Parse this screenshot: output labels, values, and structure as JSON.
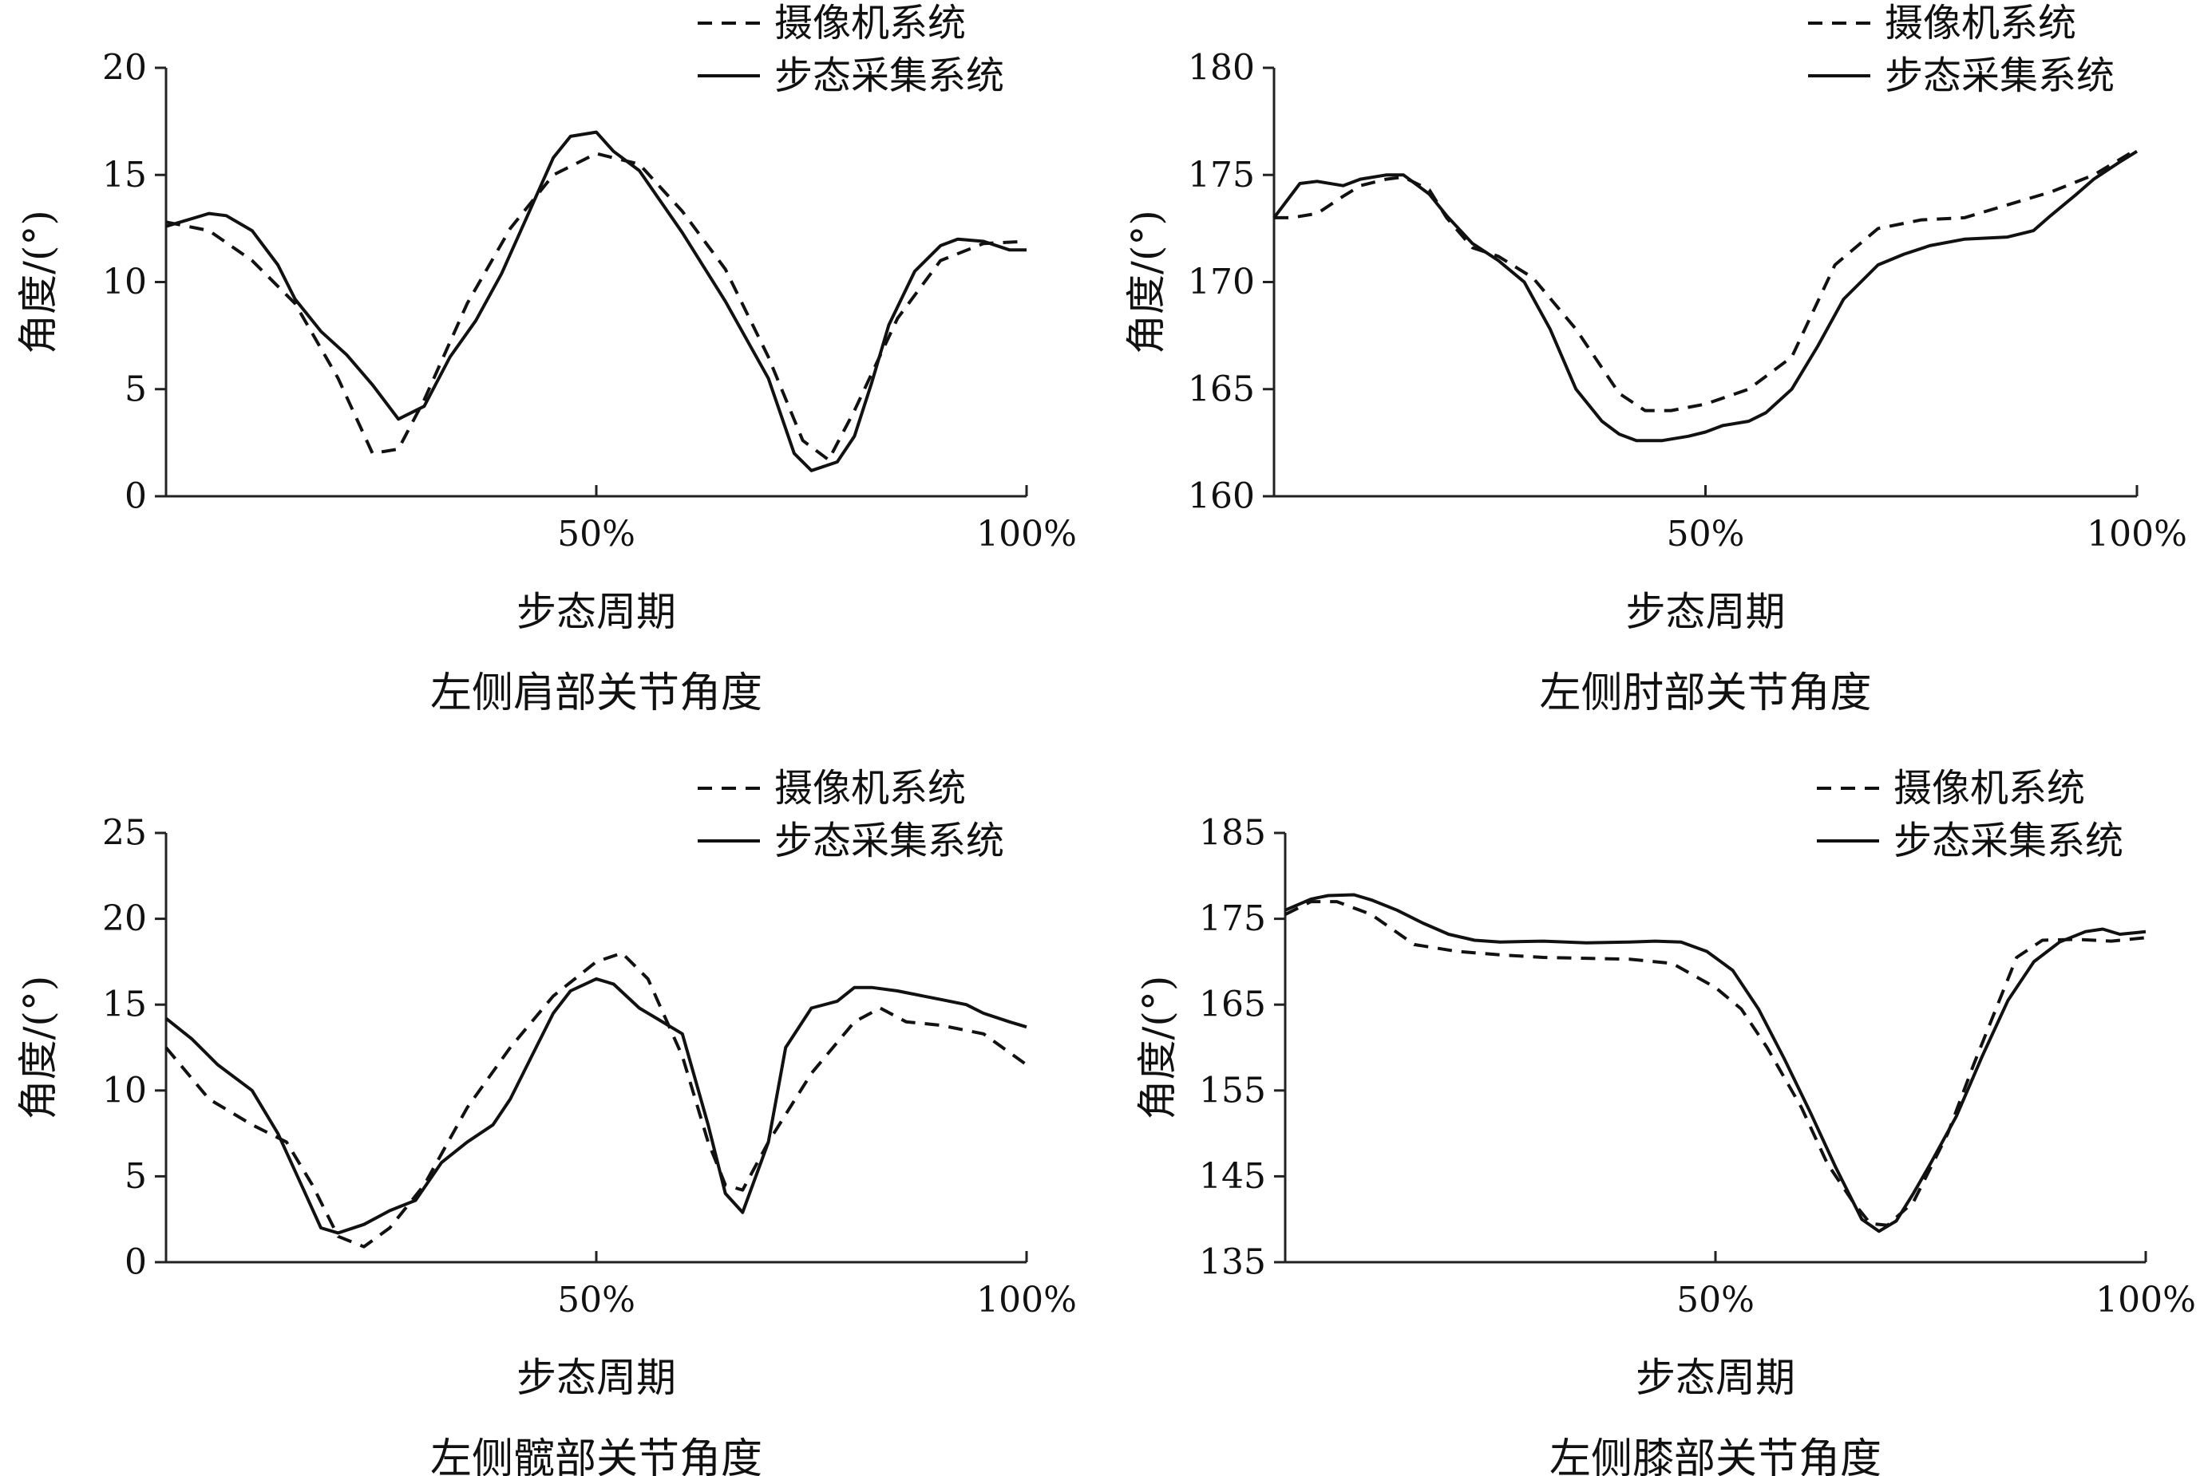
{
  "legend": {
    "camera": "摄像机系统",
    "gait": "步态采集系统"
  },
  "colors": {
    "line": "#111111",
    "axis": "#222222"
  },
  "chart_data": [
    {
      "type": "line",
      "caption": "左侧肩部关节角度",
      "xlabel": "步态周期",
      "ylabel": "角度/(°)",
      "xlim": [
        0,
        100
      ],
      "xticks": [
        {
          "value": 50,
          "label": "50%"
        },
        {
          "value": 100,
          "label": "100%"
        }
      ],
      "ylim": [
        0,
        20
      ],
      "yticks": [
        0,
        5,
        10,
        15,
        20
      ],
      "grid": false,
      "legend_position": "top-right",
      "series": [
        {
          "name": "摄像机系统",
          "style": "dashed",
          "x": [
            0,
            5,
            10,
            15,
            20,
            24,
            27,
            30,
            35,
            40,
            45,
            50,
            55,
            60,
            65,
            70,
            74,
            77,
            80,
            85,
            90,
            95,
            100
          ],
          "y": [
            12.8,
            12.4,
            11.0,
            9.0,
            5.5,
            2.0,
            2.2,
            4.5,
            9.0,
            12.5,
            15.0,
            16.0,
            15.5,
            13.3,
            10.6,
            6.5,
            2.6,
            1.7,
            4.0,
            8.3,
            11.0,
            11.8,
            11.9
          ]
        },
        {
          "name": "步态采集系统",
          "style": "solid",
          "x": [
            0,
            5,
            7,
            10,
            13,
            15,
            18,
            21,
            24,
            27,
            30,
            33,
            36,
            39,
            42,
            45,
            47,
            50,
            52,
            55,
            60,
            65,
            70,
            73,
            75,
            78,
            80,
            82,
            84,
            87,
            90,
            92,
            95,
            98,
            100
          ],
          "y": [
            12.6,
            13.2,
            13.1,
            12.4,
            10.8,
            9.2,
            7.7,
            6.6,
            5.2,
            3.6,
            4.2,
            6.5,
            8.2,
            10.4,
            13.1,
            15.8,
            16.8,
            17.0,
            16.1,
            15.2,
            12.3,
            9.1,
            5.5,
            2.0,
            1.2,
            1.6,
            2.8,
            5.3,
            8.0,
            10.5,
            11.7,
            12.0,
            11.9,
            11.5,
            11.5
          ]
        }
      ]
    },
    {
      "type": "line",
      "caption": "左侧肘部关节角度",
      "xlabel": "步态周期",
      "ylabel": "角度/(°)",
      "xlim": [
        0,
        100
      ],
      "xticks": [
        {
          "value": 50,
          "label": "50%"
        },
        {
          "value": 100,
          "label": "100%"
        }
      ],
      "ylim": [
        160,
        180
      ],
      "yticks": [
        160,
        165,
        170,
        175,
        180
      ],
      "grid": false,
      "legend_position": "top-right",
      "series": [
        {
          "name": "摄像机系统",
          "style": "dashed",
          "x": [
            0,
            2,
            5,
            8,
            10,
            13,
            15,
            18,
            20,
            23,
            26,
            30,
            35,
            40,
            43,
            46,
            50,
            55,
            60,
            65,
            70,
            75,
            80,
            85,
            90,
            95,
            100
          ],
          "y": [
            173.0,
            173.0,
            173.2,
            174.0,
            174.5,
            174.8,
            174.9,
            174.3,
            173.0,
            171.6,
            171.2,
            170.2,
            167.8,
            164.8,
            164.0,
            164.0,
            164.3,
            165.0,
            166.5,
            170.8,
            172.5,
            172.9,
            173.0,
            173.6,
            174.2,
            175.0,
            176.2
          ]
        },
        {
          "name": "步态采集系统",
          "style": "solid",
          "x": [
            0,
            3,
            5,
            8,
            10,
            13,
            15,
            18,
            20,
            23,
            26,
            29,
            32,
            35,
            38,
            40,
            42,
            45,
            48,
            50,
            52,
            55,
            57,
            60,
            63,
            66,
            70,
            73,
            76,
            80,
            85,
            88,
            90,
            93,
            95,
            98,
            100
          ],
          "y": [
            173.0,
            174.6,
            174.7,
            174.5,
            174.8,
            175.0,
            175.0,
            174.1,
            173.1,
            171.8,
            171.0,
            170.0,
            167.8,
            165.0,
            163.5,
            162.9,
            162.6,
            162.6,
            162.8,
            163.0,
            163.3,
            163.5,
            163.9,
            165.0,
            167.0,
            169.2,
            170.8,
            171.3,
            171.7,
            172.0,
            172.1,
            172.4,
            173.1,
            174.1,
            174.8,
            175.6,
            176.1
          ]
        }
      ]
    },
    {
      "type": "line",
      "caption": "左侧髋部关节角度",
      "xlabel": "步态周期",
      "ylabel": "角度/(°)",
      "xlim": [
        0,
        100
      ],
      "xticks": [
        {
          "value": 50,
          "label": "50%"
        },
        {
          "value": 100,
          "label": "100%"
        }
      ],
      "ylim": [
        0,
        25
      ],
      "yticks": [
        0,
        5,
        10,
        15,
        20,
        25
      ],
      "grid": false,
      "legend_position": "top-right",
      "series": [
        {
          "name": "摄像机系统",
          "style": "dashed",
          "x": [
            0,
            5,
            10,
            14,
            17,
            20,
            23,
            26,
            30,
            35,
            40,
            45,
            50,
            53,
            56,
            60,
            63,
            65,
            67,
            70,
            75,
            80,
            83,
            86,
            90,
            95,
            100
          ],
          "y": [
            12.5,
            9.5,
            8.0,
            7.0,
            4.5,
            1.5,
            0.9,
            2.0,
            4.5,
            9.0,
            12.5,
            15.5,
            17.5,
            18.0,
            16.5,
            12.0,
            7.0,
            4.5,
            4.2,
            7.0,
            11.0,
            14.0,
            14.8,
            14.0,
            13.8,
            13.3,
            11.5
          ]
        },
        {
          "name": "步态采集系统",
          "style": "solid",
          "x": [
            0,
            3,
            6,
            10,
            13,
            16,
            18,
            20,
            23,
            26,
            29,
            32,
            35,
            38,
            40,
            43,
            45,
            47,
            50,
            52,
            55,
            57,
            60,
            63,
            65,
            67,
            70,
            72,
            75,
            78,
            80,
            82,
            85,
            88,
            90,
            93,
            95,
            98,
            100
          ],
          "y": [
            14.2,
            13.0,
            11.5,
            10.0,
            7.5,
            4.2,
            2.0,
            1.7,
            2.2,
            3.0,
            3.6,
            5.8,
            7.0,
            8.0,
            9.5,
            12.5,
            14.5,
            15.8,
            16.5,
            16.2,
            14.8,
            14.2,
            13.3,
            8.0,
            4.0,
            2.9,
            7.0,
            12.5,
            14.8,
            15.2,
            16.0,
            16.0,
            15.8,
            15.5,
            15.3,
            15.0,
            14.5,
            14.0,
            13.7
          ]
        }
      ]
    },
    {
      "type": "line",
      "caption": "左侧膝部关节角度",
      "xlabel": "步态周期",
      "ylabel": "角度/(°)",
      "xlim": [
        0,
        100
      ],
      "xticks": [
        {
          "value": 50,
          "label": "50%"
        },
        {
          "value": 100,
          "label": "100%"
        }
      ],
      "ylim": [
        135,
        185
      ],
      "yticks": [
        135,
        145,
        155,
        165,
        175,
        185
      ],
      "grid": false,
      "legend_position": "top-right",
      "series": [
        {
          "name": "摄像机系统",
          "style": "dashed",
          "x": [
            0,
            3,
            6,
            10,
            15,
            20,
            25,
            30,
            35,
            40,
            45,
            50,
            53,
            56,
            60,
            63,
            66,
            68,
            70,
            73,
            77,
            80,
            83,
            85,
            88,
            92,
            96,
            100
          ],
          "y": [
            175.5,
            177.0,
            177.0,
            175.5,
            172.0,
            171.2,
            170.8,
            170.5,
            170.4,
            170.3,
            169.8,
            167.0,
            164.5,
            160.0,
            153.0,
            146.5,
            142.0,
            139.5,
            139.3,
            142.0,
            150.0,
            158.0,
            165.5,
            170.5,
            172.5,
            172.6,
            172.4,
            172.8
          ]
        },
        {
          "name": "步态采集系统",
          "style": "solid",
          "x": [
            0,
            3,
            5,
            8,
            10,
            13,
            16,
            19,
            22,
            25,
            30,
            35,
            40,
            43,
            46,
            49,
            52,
            55,
            58,
            61,
            64,
            67,
            69,
            71,
            73,
            75,
            78,
            81,
            84,
            87,
            90,
            93,
            95,
            97,
            100
          ],
          "y": [
            176.0,
            177.3,
            177.7,
            177.8,
            177.2,
            176.0,
            174.5,
            173.2,
            172.5,
            172.3,
            172.4,
            172.2,
            172.3,
            172.4,
            172.3,
            171.2,
            169.0,
            164.5,
            158.7,
            152.5,
            146.0,
            140.0,
            138.6,
            139.8,
            143.0,
            146.5,
            152.0,
            159.0,
            165.5,
            170.0,
            172.3,
            173.5,
            173.8,
            173.2,
            173.5
          ]
        }
      ]
    }
  ]
}
